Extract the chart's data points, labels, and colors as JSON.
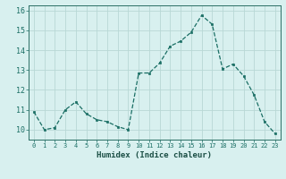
{
  "x": [
    0,
    1,
    2,
    3,
    4,
    5,
    6,
    7,
    8,
    9,
    10,
    11,
    12,
    13,
    14,
    15,
    16,
    17,
    18,
    19,
    20,
    21,
    22,
    23
  ],
  "y": [
    10.9,
    10.0,
    10.1,
    11.0,
    11.4,
    10.8,
    10.5,
    10.4,
    10.15,
    10.0,
    12.85,
    12.85,
    13.35,
    14.2,
    14.45,
    14.9,
    15.75,
    15.3,
    13.05,
    13.3,
    12.7,
    11.75,
    10.4,
    9.8
  ],
  "xlabel": "Humidex (Indice chaleur)",
  "bg_color": "#d8f0ef",
  "grid_color": "#b8d8d5",
  "line_color": "#1a6e64",
  "marker_color": "#1a6e64",
  "ylim": [
    9.5,
    16.25
  ],
  "xlim": [
    -0.5,
    23.5
  ],
  "yticks": [
    10,
    11,
    12,
    13,
    14,
    15,
    16
  ],
  "xticks": [
    0,
    1,
    2,
    3,
    4,
    5,
    6,
    7,
    8,
    9,
    10,
    11,
    12,
    13,
    14,
    15,
    16,
    17,
    18,
    19,
    20,
    21,
    22,
    23
  ],
  "xtick_labels": [
    "0",
    "1",
    "2",
    "3",
    "4",
    "5",
    "6",
    "7",
    "8",
    "9",
    "10",
    "11",
    "12",
    "13",
    "14",
    "15",
    "16",
    "17",
    "18",
    "19",
    "20",
    "21",
    "22",
    "23"
  ],
  "axis_color": "#2a6e64",
  "tick_color": "#1a6e64",
  "label_color": "#1a4e44"
}
